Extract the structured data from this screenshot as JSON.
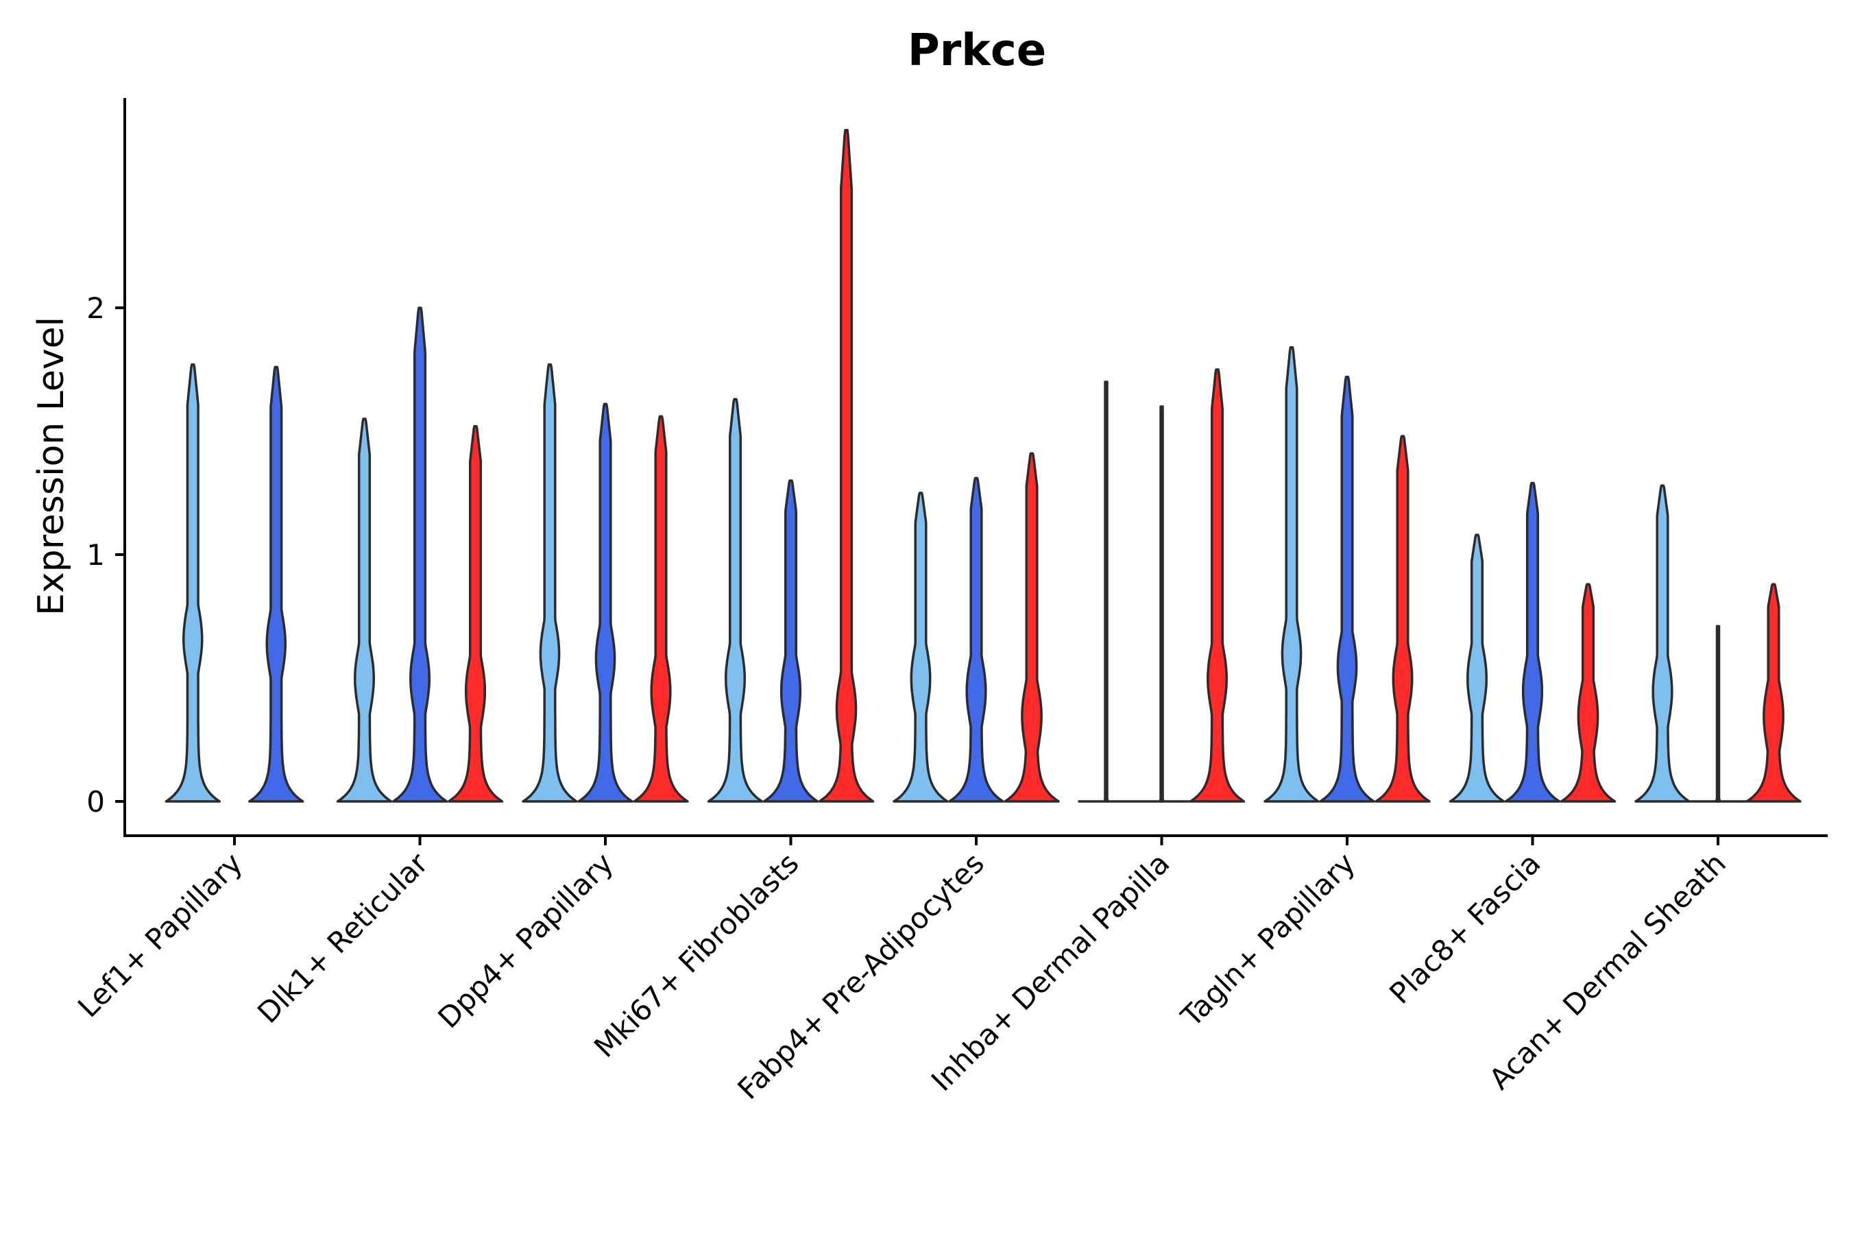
{
  "chart_data": {
    "type": "violin",
    "title": "Prkce",
    "xlabel": "",
    "ylabel": "Expression Level",
    "ylim": [
      -0.14,
      2.86
    ],
    "yticks": [
      0,
      1,
      2
    ],
    "grid": false,
    "legend": "none",
    "series_colors": [
      "#7fbfef",
      "#4169e8",
      "#ff2a2a"
    ],
    "categories": [
      "Lef1+ Papillary",
      "Dlk1+ Reticular",
      "Dpp4+ Papillary",
      "Mki67+ Fibroblasts",
      "Fabp4+ Pre-Adipocytes",
      "Inhba+ Dermal Papilla",
      "Tagln+ Papillary",
      "Plac8+ Fascia",
      "Acan+ Dermal Sheath"
    ],
    "groups": [
      {
        "category": "Lef1+ Papillary",
        "violins": [
          {
            "series": 0,
            "max": 1.77,
            "modes": [
              0.66
            ]
          },
          {
            "series": 1,
            "max": 1.76,
            "modes": [
              0.64
            ]
          }
        ]
      },
      {
        "category": "Dlk1+ Reticular",
        "violins": [
          {
            "series": 0,
            "max": 1.55,
            "modes": [
              0.5
            ]
          },
          {
            "series": 1,
            "max": 2.0,
            "modes": [
              0.5
            ]
          },
          {
            "series": 2,
            "max": 1.52,
            "modes": [
              0.45
            ]
          }
        ]
      },
      {
        "category": "Dpp4+ Papillary",
        "violins": [
          {
            "series": 0,
            "max": 1.77,
            "modes": [
              0.6
            ]
          },
          {
            "series": 1,
            "max": 1.61,
            "modes": [
              0.58
            ]
          },
          {
            "series": 2,
            "max": 1.56,
            "modes": [
              0.45
            ]
          }
        ]
      },
      {
        "category": "Mki67+ Fibroblasts",
        "violins": [
          {
            "series": 0,
            "max": 1.63,
            "modes": [
              0.5
            ]
          },
          {
            "series": 1,
            "max": 1.3,
            "modes": [
              0.45
            ]
          },
          {
            "series": 2,
            "max": 2.72,
            "modes": [
              0.38
            ]
          }
        ]
      },
      {
        "category": "Fabp4+ Pre-Adipocytes",
        "violins": [
          {
            "series": 0,
            "max": 1.25,
            "modes": [
              0.5
            ]
          },
          {
            "series": 1,
            "max": 1.31,
            "modes": [
              0.45
            ]
          },
          {
            "series": 2,
            "max": 1.41,
            "modes": [
              0.35
            ]
          }
        ]
      },
      {
        "category": "Inhba+ Dermal Papilla",
        "violins": [
          {
            "series": 0,
            "max": 1.7,
            "modes": []
          },
          {
            "series": 1,
            "max": 1.6,
            "modes": []
          },
          {
            "series": 2,
            "max": 1.75,
            "modes": [
              0.5
            ]
          }
        ]
      },
      {
        "category": "Tagln+ Papillary",
        "violins": [
          {
            "series": 0,
            "max": 1.84,
            "modes": [
              0.6
            ]
          },
          {
            "series": 1,
            "max": 1.72,
            "modes": [
              0.55
            ]
          },
          {
            "series": 2,
            "max": 1.48,
            "modes": [
              0.5
            ]
          }
        ]
      },
      {
        "category": "Plac8+ Fascia",
        "violins": [
          {
            "series": 0,
            "max": 1.08,
            "modes": [
              0.5
            ]
          },
          {
            "series": 1,
            "max": 1.29,
            "modes": [
              0.45
            ]
          },
          {
            "series": 2,
            "max": 0.88,
            "modes": [
              0.35
            ]
          }
        ]
      },
      {
        "category": "Acan+ Dermal Sheath",
        "violins": [
          {
            "series": 0,
            "max": 1.28,
            "modes": [
              0.45
            ]
          },
          {
            "series": 1,
            "max": 0.71,
            "modes": []
          },
          {
            "series": 2,
            "max": 0.88,
            "modes": [
              0.35
            ]
          }
        ]
      }
    ]
  }
}
